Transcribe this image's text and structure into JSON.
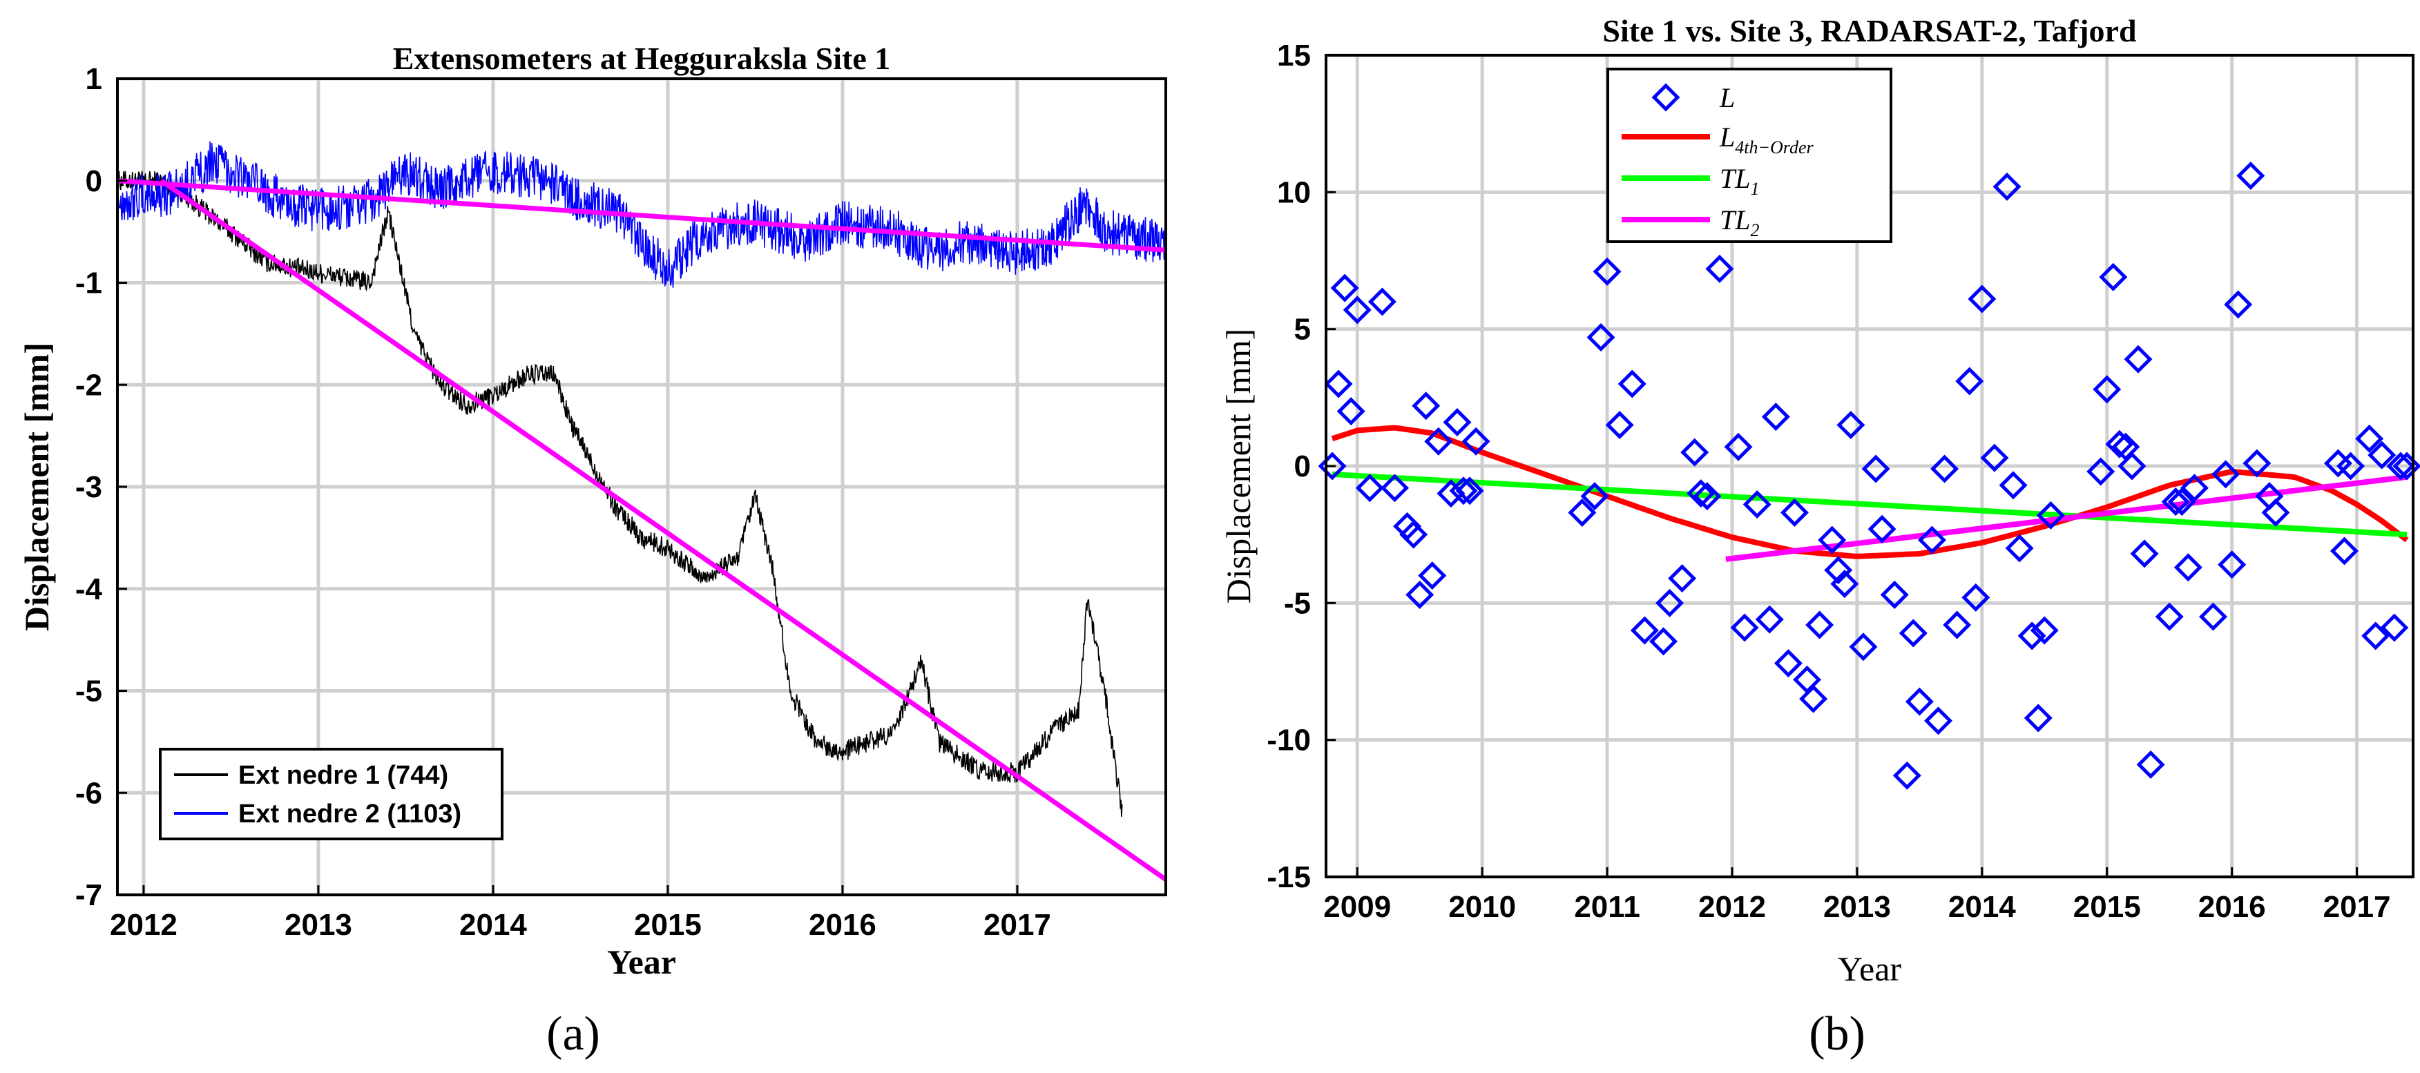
{
  "chart_data": [
    {
      "type": "line",
      "title": "Extensometers at Hegguraksla Site 1",
      "xlabel": "Year",
      "ylabel": "Displacement [mm]",
      "xlim": [
        2011.85,
        2017.85
      ],
      "ylim": [
        -7,
        1
      ],
      "xticks": [
        2012,
        2013,
        2014,
        2015,
        2016,
        2017
      ],
      "xtick_labels": [
        "2012",
        "2013",
        "2014",
        "2015",
        "2016",
        "2017"
      ],
      "yticks": [
        1,
        0,
        -1,
        -2,
        -3,
        -4,
        -5,
        -6,
        -7
      ],
      "ytick_labels": [
        "1",
        "0",
        "-1",
        "-2",
        "-3",
        "-4",
        "-5",
        "-6",
        "-7"
      ],
      "caption": "(a)",
      "legend": {
        "position": "bottom-left",
        "entries": [
          {
            "label": "Ext nedre 1 (744)",
            "color": "#000000"
          },
          {
            "label": "Ext nedre 2 (1103)",
            "color": "#0000ff"
          }
        ]
      },
      "series": [
        {
          "name": "Ext nedre 1 (744)",
          "color": "#000000",
          "noise": 0.2,
          "x": [
            2011.85,
            2012.1,
            2012.2,
            2012.5,
            2012.7,
            2013.0,
            2013.3,
            2013.4,
            2013.55,
            2013.7,
            2013.85,
            2014.0,
            2014.2,
            2014.35,
            2014.45,
            2014.7,
            2014.85,
            2015.0,
            2015.2,
            2015.4,
            2015.5,
            2015.6,
            2015.7,
            2015.85,
            2016.0,
            2016.3,
            2016.45,
            2016.55,
            2016.8,
            2017.0,
            2017.2,
            2017.35,
            2017.4,
            2017.5,
            2017.6
          ],
          "y": [
            0,
            0,
            -0.1,
            -0.5,
            -0.8,
            -0.9,
            -1.0,
            -0.3,
            -1.5,
            -2.0,
            -2.2,
            -2.1,
            -1.9,
            -1.9,
            -2.4,
            -3.2,
            -3.5,
            -3.6,
            -3.9,
            -3.7,
            -3.1,
            -3.8,
            -5.0,
            -5.5,
            -5.6,
            -5.4,
            -4.7,
            -5.5,
            -5.8,
            -5.8,
            -5.4,
            -5.2,
            -4.1,
            -5.0,
            -6.2
          ]
        },
        {
          "name": "Ext nedre 2 (1103)",
          "color": "#0000ff",
          "noise": 0.45,
          "x": [
            2011.85,
            2012.2,
            2012.4,
            2012.6,
            2012.8,
            2013.0,
            2013.3,
            2013.5,
            2013.7,
            2014.0,
            2014.3,
            2014.5,
            2014.7,
            2015.0,
            2015.2,
            2015.5,
            2015.8,
            2016.0,
            2016.3,
            2016.5,
            2016.7,
            2017.0,
            2017.2,
            2017.4,
            2017.5,
            2017.85
          ],
          "y": [
            -0.2,
            -0.1,
            0.2,
            0.0,
            -0.2,
            -0.3,
            -0.2,
            0.1,
            -0.1,
            0.1,
            0.0,
            -0.2,
            -0.3,
            -0.9,
            -0.5,
            -0.4,
            -0.6,
            -0.4,
            -0.5,
            -0.7,
            -0.6,
            -0.7,
            -0.6,
            -0.2,
            -0.5,
            -0.6
          ]
        },
        {
          "name": "trend 1",
          "color": "#ff00ff",
          "x": [
            2012.1,
            2017.85
          ],
          "y": [
            0,
            -6.85
          ]
        },
        {
          "name": "trend 2",
          "color": "#ff00ff",
          "x": [
            2011.85,
            2017.85
          ],
          "y": [
            0,
            -0.68
          ]
        }
      ]
    },
    {
      "type": "scatter",
      "title": "Site 1 vs. Site 3, RADARSAT-2, Tafjord",
      "xlabel": "Year",
      "ylabel": "Displacement [mm]",
      "xlim": [
        2008.75,
        2017.45
      ],
      "ylim": [
        -15,
        15
      ],
      "xticks": [
        2009,
        2010,
        2011,
        2012,
        2013,
        2014,
        2015,
        2016,
        2017
      ],
      "xtick_labels": [
        "2009",
        "2010",
        "2011",
        "2012",
        "2013",
        "2014",
        "2015",
        "2016",
        "2017"
      ],
      "yticks": [
        15,
        10,
        5,
        0,
        -5,
        -10,
        -15
      ],
      "ytick_labels": [
        "15",
        "10",
        "5",
        "0",
        "-5",
        "-10",
        "-15"
      ],
      "caption": "(b)",
      "legend": {
        "position": "top-left",
        "entries": [
          {
            "label": "L",
            "color": "#0000ff",
            "marker": "diamond"
          },
          {
            "label": "L",
            "sub": "4th−Order",
            "color": "#ff0000"
          },
          {
            "label": "TL",
            "sub": "1",
            "color": "#00ff00"
          },
          {
            "label": "TL",
            "sub": "2",
            "color": "#ff00ff"
          }
        ]
      },
      "points": {
        "x": [
          2008.8,
          2008.85,
          2008.9,
          2008.95,
          2009.0,
          2009.1,
          2009.2,
          2009.3,
          2009.4,
          2009.45,
          2009.5,
          2009.55,
          2009.6,
          2009.65,
          2009.75,
          2009.8,
          2009.85,
          2009.9,
          2009.95,
          2010.8,
          2010.9,
          2010.95,
          2011.0,
          2011.1,
          2011.2,
          2011.3,
          2011.45,
          2011.5,
          2011.6,
          2011.7,
          2011.75,
          2011.8,
          2011.9,
          2012.05,
          2012.1,
          2012.2,
          2012.3,
          2012.35,
          2012.45,
          2012.5,
          2012.6,
          2012.65,
          2012.7,
          2012.8,
          2012.85,
          2012.9,
          2012.95,
          2013.05,
          2013.15,
          2013.2,
          2013.3,
          2013.4,
          2013.45,
          2013.5,
          2013.6,
          2013.65,
          2013.7,
          2013.8,
          2013.9,
          2013.95,
          2014.0,
          2014.1,
          2014.2,
          2014.25,
          2014.3,
          2014.4,
          2014.45,
          2014.5,
          2014.55,
          2014.95,
          2015.0,
          2015.05,
          2015.1,
          2015.15,
          2015.2,
          2015.25,
          2015.3,
          2015.35,
          2015.5,
          2015.55,
          2015.6,
          2015.65,
          2015.7,
          2015.85,
          2015.95,
          2016.0,
          2016.05,
          2016.15,
          2016.2,
          2016.3,
          2016.35,
          2016.85,
          2016.9,
          2016.95,
          2017.1,
          2017.15,
          2017.2,
          2017.3,
          2017.35,
          2017.4
        ],
        "y": [
          0.0,
          3.0,
          6.5,
          2.0,
          5.7,
          -0.8,
          6.0,
          -0.8,
          -2.2,
          -2.5,
          -4.7,
          2.2,
          -4.0,
          0.9,
          -1.0,
          1.6,
          -0.9,
          -0.9,
          0.9,
          -1.7,
          -1.1,
          4.7,
          7.1,
          1.5,
          3.0,
          -6.0,
          -6.4,
          -5.0,
          -4.1,
          0.5,
          -1.0,
          -1.1,
          7.2,
          0.7,
          -5.9,
          -1.4,
          -5.6,
          1.8,
          -7.2,
          -1.7,
          -7.8,
          -8.5,
          -5.8,
          -2.7,
          -3.8,
          -4.3,
          1.5,
          -6.6,
          -0.1,
          -2.3,
          -4.7,
          -11.3,
          -6.1,
          -8.6,
          -2.7,
          -9.3,
          -0.1,
          -5.8,
          3.1,
          -4.8,
          6.1,
          0.3,
          10.2,
          -0.7,
          -3.0,
          -6.2,
          -9.2,
          -6.0,
          -1.8,
          -0.2,
          2.8,
          6.9,
          0.8,
          0.7,
          0.0,
          3.9,
          -3.2,
          -10.9,
          -5.5,
          -1.3,
          -1.3,
          -3.7,
          -0.8,
          -5.5,
          -0.3,
          -3.6,
          5.9,
          10.6,
          0.1,
          -1.1,
          -1.7,
          0.1,
          -3.1,
          0.0,
          1.0,
          -6.2,
          0.4,
          -5.9,
          0.0,
          0.0
        ]
      },
      "series": [
        {
          "name": "L 4th-Order",
          "color": "#ff0000",
          "x": [
            2008.8,
            2009.0,
            2009.3,
            2009.6,
            2010.0,
            2010.5,
            2011.0,
            2011.5,
            2012.0,
            2012.5,
            2013.0,
            2013.5,
            2014.0,
            2014.5,
            2015.0,
            2015.5,
            2016.0,
            2016.5,
            2016.8,
            2017.0,
            2017.2,
            2017.4
          ],
          "y": [
            1.0,
            1.3,
            1.4,
            1.2,
            0.5,
            -0.3,
            -1.1,
            -1.9,
            -2.6,
            -3.1,
            -3.3,
            -3.2,
            -2.8,
            -2.2,
            -1.5,
            -0.7,
            -0.2,
            -0.4,
            -0.9,
            -1.4,
            -2.0,
            -2.7
          ]
        },
        {
          "name": "TL1",
          "color": "#00ff00",
          "x": [
            2008.8,
            2017.4
          ],
          "y": [
            -0.3,
            -2.5
          ]
        },
        {
          "name": "TL2",
          "color": "#ff00ff",
          "x": [
            2011.95,
            2017.4
          ],
          "y": [
            -3.4,
            -0.4
          ]
        }
      ]
    }
  ]
}
